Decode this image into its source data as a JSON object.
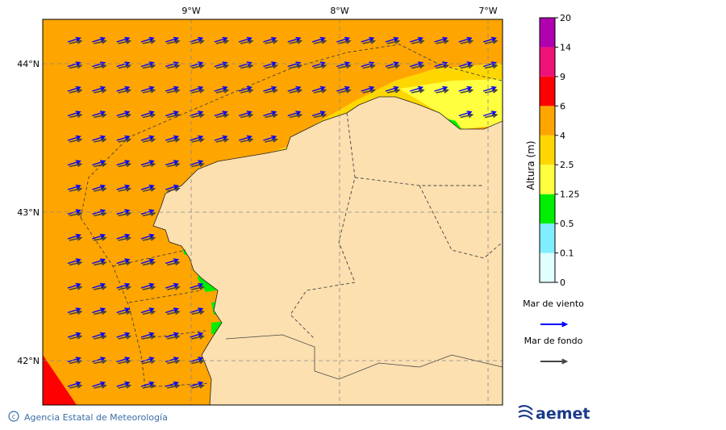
{
  "map": {
    "lon_labels": [
      "9°W",
      "8°W",
      "7°W"
    ],
    "lat_labels": [
      "44°N",
      "43°N",
      "42°N"
    ]
  },
  "colorbar": {
    "label": "Altura (m)",
    "ticks": [
      0,
      0.1,
      0.5,
      1.25,
      2.5,
      4,
      6,
      9,
      14,
      20
    ],
    "colors": [
      "#e0ffff",
      "#80eeff",
      "#00ee00",
      "#ffff40",
      "#ffd700",
      "#ffa500",
      "#ff0000",
      "#ee1177",
      "#b000b0"
    ]
  },
  "legend": [
    {
      "label": "Mar de viento",
      "color": "#0000ff"
    },
    {
      "label": "Mar de fondo",
      "color": "#444444"
    }
  ],
  "footer": {
    "credit": "Agencia Estatal de Meteorología",
    "logo": "aemet"
  }
}
